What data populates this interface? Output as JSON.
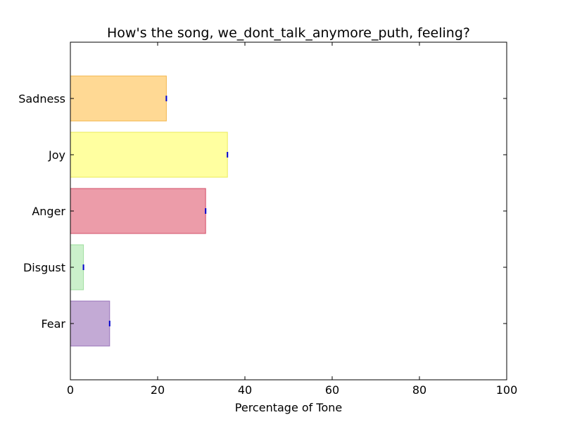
{
  "chart_data": {
    "type": "bar",
    "orientation": "horizontal",
    "title": "How's the song, we_dont_talk_anymore_puth, feeling?",
    "xlabel": "Percentage of Tone",
    "ylabel": "",
    "xlim": [
      0,
      100
    ],
    "xticks": [
      "0",
      "20",
      "40",
      "60",
      "80",
      "100"
    ],
    "categories": [
      "Fear",
      "Disgust",
      "Anger",
      "Joy",
      "Sadness"
    ],
    "values": [
      9,
      3,
      31,
      36,
      22
    ],
    "colors": [
      "#9b72b9",
      "#a8e6a8",
      "#e05a70",
      "#ffff60",
      "#ffc04d"
    ],
    "edge_colors": [
      "#8a5fb0",
      "#8fd88f",
      "#cc3350",
      "#e6e640",
      "#f0a830"
    ],
    "error_marker_color": "#0000cc",
    "grid": false,
    "legend": "none"
  }
}
